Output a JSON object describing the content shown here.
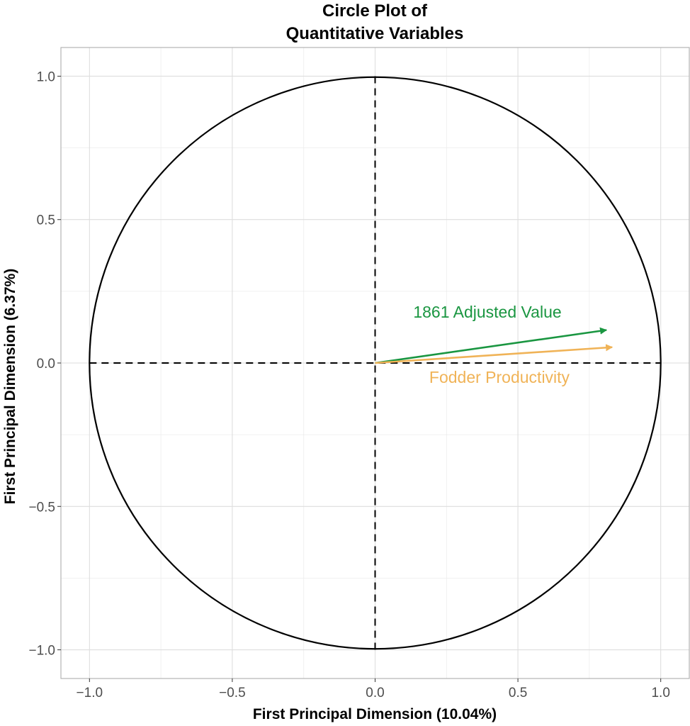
{
  "chart_data": {
    "type": "scatter",
    "subtype": "pca-correlation-circle",
    "title_lines": [
      "Circle Plot of",
      "Quantitative Variables"
    ],
    "xlabel": "First Principal Dimension (10.04%)",
    "ylabel": "First Principal Dimension (6.37%)",
    "xlim": [
      -1.1,
      1.1
    ],
    "ylim": [
      -1.1,
      1.1
    ],
    "xticks": [
      -1.0,
      -0.5,
      0.0,
      0.5,
      1.0
    ],
    "yticks": [
      -1.0,
      -0.5,
      0.0,
      0.5,
      1.0
    ],
    "xtick_labels": [
      "−1.0",
      "−0.5",
      "0.0",
      "0.5",
      "1.0"
    ],
    "ytick_labels": [
      "−1.0",
      "−0.5",
      "0.0",
      "0.5",
      "1.0"
    ],
    "grid": true,
    "unit_circle_radius": 1.0,
    "reference_lines": {
      "style": "dashed",
      "x": 0.0,
      "y": 0.0
    },
    "series": [
      {
        "name": "1861 Adjusted Value",
        "x": 0.81,
        "y": 0.115,
        "color": "#1a9641"
      },
      {
        "name": "Fodder Productivity",
        "x": 0.83,
        "y": 0.055,
        "color": "#f0b357"
      }
    ]
  }
}
